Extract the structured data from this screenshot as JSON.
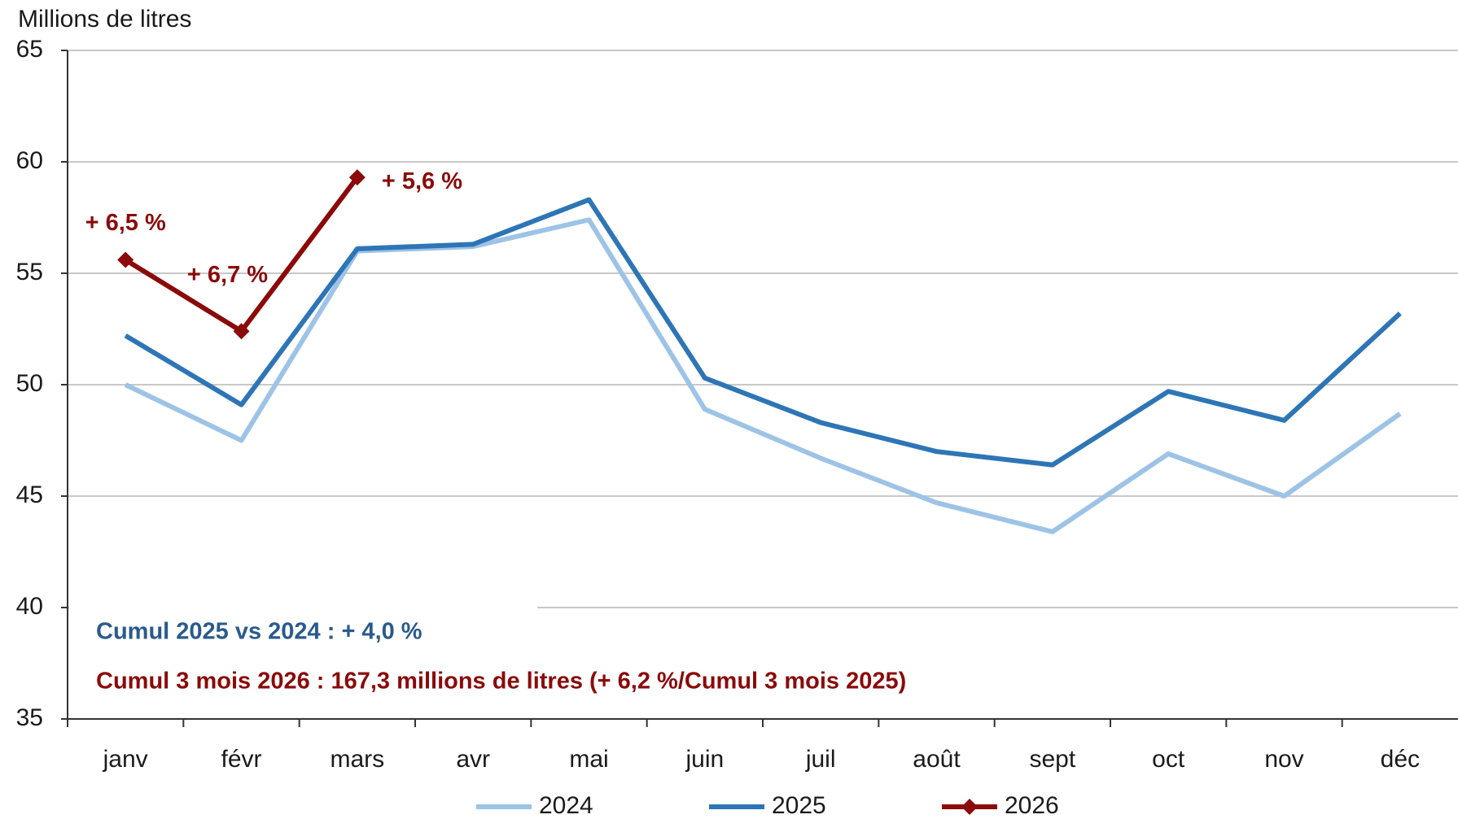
{
  "chart_data": {
    "type": "line",
    "y_label": "Millions de litres",
    "categories": [
      "janv",
      "févr",
      "mars",
      "avr",
      "mai",
      "juin",
      "juil",
      "août",
      "sept",
      "oct",
      "nov",
      "déc"
    ],
    "series": [
      {
        "name": "2024",
        "color": "#9dc3e6",
        "values": [
          50.0,
          47.5,
          56.0,
          56.2,
          57.4,
          48.9,
          46.7,
          44.7,
          43.4,
          46.9,
          45.0,
          48.7
        ]
      },
      {
        "name": "2025",
        "color": "#2e75b6",
        "values": [
          52.2,
          49.1,
          56.1,
          56.3,
          58.3,
          50.3,
          48.3,
          47.0,
          46.4,
          49.7,
          48.4,
          53.2
        ]
      },
      {
        "name": "2026",
        "color": "#8b0a0a",
        "marker": "diamond",
        "values": [
          55.6,
          52.4,
          59.3,
          null,
          null,
          null,
          null,
          null,
          null,
          null,
          null,
          null
        ],
        "point_labels": [
          "+ 6,5 %",
          "+ 6,7 %",
          "+ 5,6 %"
        ]
      }
    ],
    "annotations": [
      {
        "text": "Cumul 2025 vs 2024 : + 4,0 %",
        "color": "#2a5a8c"
      },
      {
        "text": "Cumul 3 mois 2026 : 167,3 millions de litres (+ 6,2 %/Cumul 3 mois 2025)",
        "color": "#8b0a0a"
      }
    ],
    "ylim": [
      35,
      65
    ],
    "yticks": [
      35,
      40,
      45,
      50,
      55,
      60,
      65
    ],
    "grid": true,
    "legend": "bottom"
  }
}
